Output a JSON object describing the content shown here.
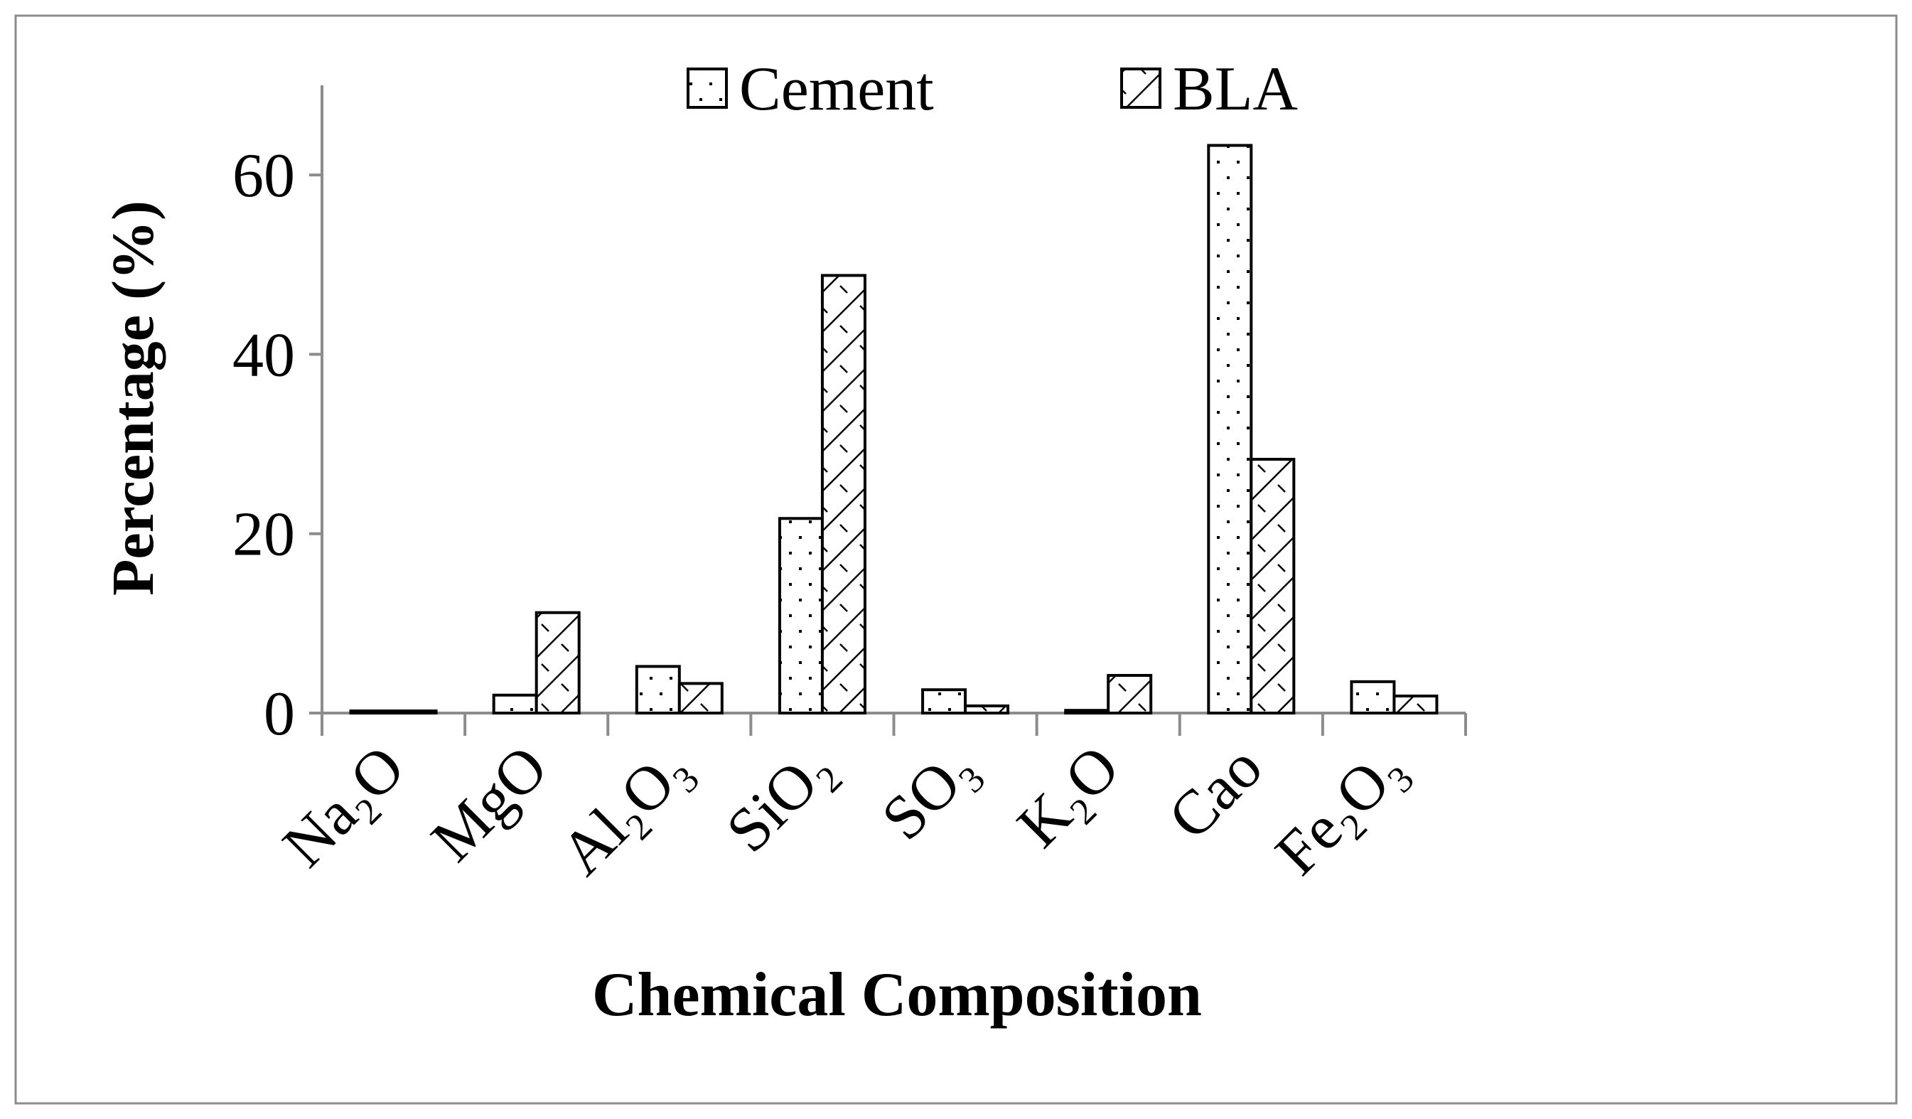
{
  "chart_data": {
    "type": "bar",
    "title": "",
    "xlabel": "Chemical Composition",
    "ylabel": "Percentage (%)",
    "ylim": [
      0,
      70
    ],
    "yticks": [
      0,
      20,
      40,
      60
    ],
    "grid": false,
    "legend_position": "top-center",
    "categories": [
      "Na₂O",
      "MgO",
      "Al₂O₃",
      "SiO₂",
      "SO₃",
      "K₂O",
      "Cao",
      "Fe₂O₃"
    ],
    "series": [
      {
        "name": "Cement",
        "pattern": "dots",
        "values": [
          0.2,
          2.0,
          5.2,
          21.7,
          2.6,
          0.3,
          63.3,
          3.5
        ]
      },
      {
        "name": "BLA",
        "pattern": "diagonal-hatch",
        "values": [
          0.2,
          11.2,
          3.3,
          48.8,
          0.8,
          4.2,
          28.3,
          1.9
        ]
      }
    ],
    "colors": {
      "stroke": "#000000",
      "axis": "#8c8c8c",
      "background": "#ffffff",
      "frame": "#8c8c8c"
    }
  }
}
